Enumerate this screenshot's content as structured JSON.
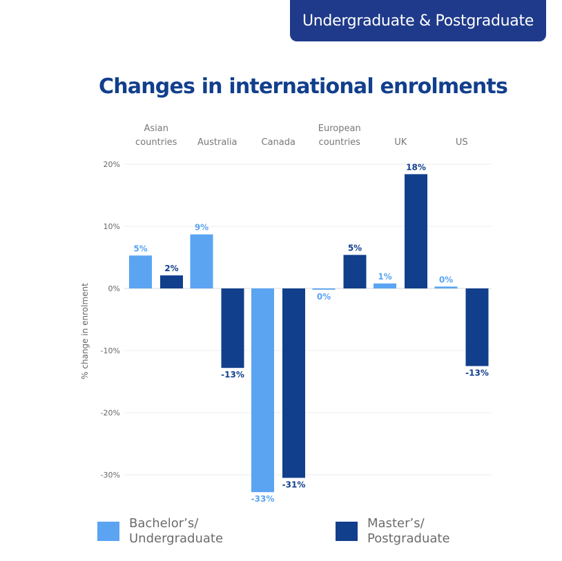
{
  "header": {
    "tab_label": "Undergraduate & Postgraduate"
  },
  "colors": {
    "bachelor": "#5aa4f2",
    "master": "#113f8c",
    "tab_bg": "#1f3a8a",
    "title": "#123f8c"
  },
  "chart_data": {
    "type": "bar",
    "title": "Changes in international  enrolments",
    "ylabel": "% change in enrolment",
    "xlabel": "",
    "ylim": [
      -35,
      20
    ],
    "yticks": [
      20,
      10,
      0,
      -10,
      -20,
      -30
    ],
    "ytick_labels": [
      "20%",
      "10%",
      "0%",
      "-10%",
      "-20%",
      "-30%"
    ],
    "grid": true,
    "categories": [
      [
        "Asian",
        "countries"
      ],
      [
        "Australia"
      ],
      [
        "Canada"
      ],
      [
        "European",
        "countries"
      ],
      [
        "UK"
      ],
      [
        "US"
      ]
    ],
    "series": [
      {
        "name": "Bachelor’s/ Undergraduate",
        "name_lines": [
          "Bachelor’s/",
          "Undergraduate"
        ],
        "values": [
          5.3,
          8.7,
          -32.8,
          -0.2,
          0.8,
          0.3
        ],
        "labels": [
          "5%",
          "9%",
          "-33%",
          "0%",
          "1%",
          "0%"
        ]
      },
      {
        "name": "Master’s/ Postgraduate",
        "name_lines": [
          "Master’s/",
          "Postgraduate"
        ],
        "values": [
          2.1,
          -12.8,
          -30.5,
          5.4,
          18.4,
          -12.5
        ],
        "labels": [
          "2%",
          "-13%",
          "-31%",
          "5%",
          "18%",
          "-13%"
        ]
      }
    ],
    "legend_position": "bottom"
  }
}
